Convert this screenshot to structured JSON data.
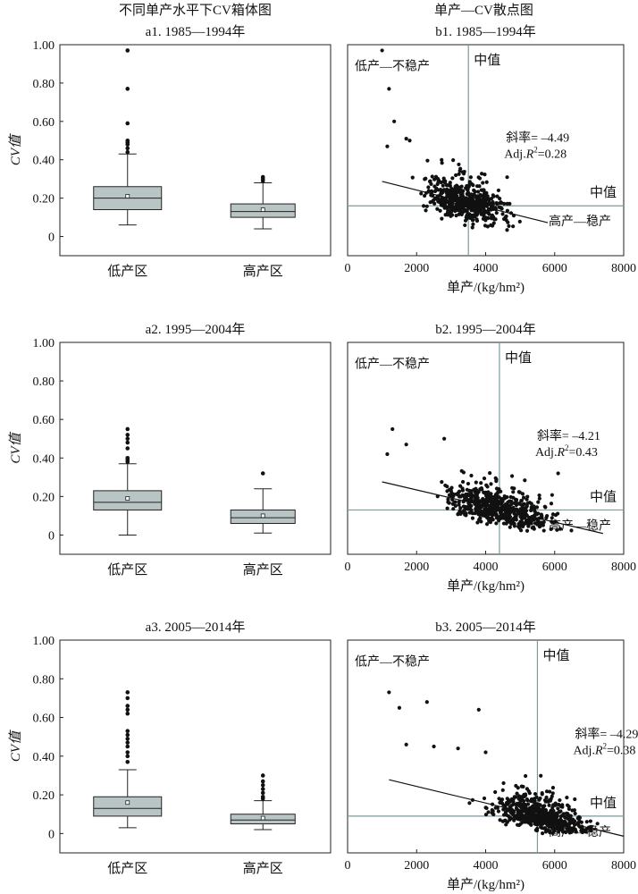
{
  "header": {
    "left_title": "不同单产水平下CV箱体图",
    "right_title": "单产—CV散点图"
  },
  "chart_data": [
    {
      "id": "a1",
      "type": "box",
      "title": "a1. 1985—1994年",
      "ylabel": "CV值",
      "ylim": [
        -0.1,
        1.0
      ],
      "yticks": [
        0,
        0.2,
        0.4,
        0.6,
        0.8,
        1.0
      ],
      "ytick_labels": [
        "0",
        "0.20",
        "0.40",
        "0.60",
        "0.80",
        "1.00"
      ],
      "categories": [
        "低产区",
        "高产区"
      ],
      "boxes": [
        {
          "name": "低产区",
          "whisker_low": 0.06,
          "q1": 0.14,
          "median": 0.2,
          "q3": 0.26,
          "whisker_high": 0.43,
          "mean": 0.21,
          "outliers": [
            0.44,
            0.46,
            0.48,
            0.49,
            0.5,
            0.59,
            0.77,
            0.97
          ]
        },
        {
          "name": "高产区",
          "whisker_low": 0.04,
          "q1": 0.1,
          "median": 0.13,
          "q3": 0.17,
          "whisker_high": 0.28,
          "mean": 0.14,
          "outliers": [
            0.29,
            0.3,
            0.31
          ]
        }
      ],
      "box_color": "#b9c4c4"
    },
    {
      "id": "b1",
      "type": "scatter",
      "title": "b1. 1985—1994年",
      "xlabel": "单产/(kg/hm²)",
      "xlim": [
        0,
        8000
      ],
      "ylim": [
        -0.1,
        1.0
      ],
      "xticks": [
        0,
        2000,
        4000,
        6000,
        8000
      ],
      "median_x": 3500,
      "median_y": 0.16,
      "labels": {
        "low": "低产—不稳产",
        "high": "高产—稳产",
        "median": "中值"
      },
      "annotation": {
        "slope": "斜率= –4.49",
        "r2_prefix": "Adj.",
        "r2_var": "R",
        "r2_sup": "2",
        "r2_value": "=0.28"
      },
      "cloud": {
        "x_min": 1000,
        "x_max": 5900,
        "n": 520,
        "slope_per_1000": -0.0449,
        "intercept": 0.332,
        "x_center": 3400,
        "spread": 1050,
        "noise": 0.065,
        "y_floor": 0.03,
        "seed": 11
      },
      "line": [
        [
          1000,
          0.287
        ],
        [
          5800,
          0.072
        ]
      ],
      "extra_points": [
        [
          1000,
          0.97
        ],
        [
          1200,
          0.77
        ],
        [
          1350,
          0.6
        ],
        [
          1700,
          0.51
        ],
        [
          1800,
          0.5
        ],
        [
          1150,
          0.47
        ]
      ]
    },
    {
      "id": "a2",
      "type": "box",
      "title": "a2. 1995—2004年",
      "ylabel": "CV值",
      "ylim": [
        -0.1,
        1.0
      ],
      "yticks": [
        0,
        0.2,
        0.4,
        0.6,
        0.8,
        1.0
      ],
      "ytick_labels": [
        "0",
        "0.20",
        "0.40",
        "0.60",
        "0.80",
        "1.00"
      ],
      "categories": [
        "低产区",
        "高产区"
      ],
      "boxes": [
        {
          "name": "低产区",
          "whisker_low": 0.0,
          "q1": 0.13,
          "median": 0.17,
          "q3": 0.23,
          "whisker_high": 0.37,
          "mean": 0.19,
          "outliers": [
            0.38,
            0.39,
            0.4,
            0.45,
            0.48,
            0.5,
            0.52,
            0.55
          ]
        },
        {
          "name": "高产区",
          "whisker_low": 0.01,
          "q1": 0.06,
          "median": 0.09,
          "q3": 0.13,
          "whisker_high": 0.24,
          "mean": 0.1,
          "outliers": [
            0.32
          ]
        }
      ],
      "box_color": "#b9c4c4"
    },
    {
      "id": "b2",
      "type": "scatter",
      "title": "b2. 1995—2004年",
      "xlabel": "单产/(kg/hm²)",
      "xlim": [
        0,
        8000
      ],
      "ylim": [
        -0.1,
        1.0
      ],
      "xticks": [
        0,
        2000,
        4000,
        6000,
        8000
      ],
      "median_x": 4400,
      "median_y": 0.13,
      "labels": {
        "low": "低产—不稳产",
        "high": "高产—稳产",
        "median": "中值"
      },
      "annotation": {
        "slope": "斜率= –4.21",
        "r2_prefix": "Adj.",
        "r2_var": "R",
        "r2_sup": "2",
        "r2_value": "=0.43"
      },
      "cloud": {
        "x_min": 1100,
        "x_max": 7500,
        "n": 560,
        "slope_per_1000": -0.0421,
        "intercept": 0.318,
        "x_center": 4400,
        "spread": 1400,
        "noise": 0.06,
        "y_floor": 0.01,
        "seed": 23
      },
      "line": [
        [
          1000,
          0.276
        ],
        [
          7400,
          0.008
        ]
      ],
      "extra_points": [
        [
          1300,
          0.55
        ],
        [
          1700,
          0.47
        ],
        [
          2800,
          0.5
        ],
        [
          6100,
          0.32
        ],
        [
          1150,
          0.42
        ]
      ]
    },
    {
      "id": "a3",
      "type": "box",
      "title": "a3. 2005—2014年",
      "ylabel": "CV值",
      "ylim": [
        -0.1,
        1.0
      ],
      "yticks": [
        0,
        0.2,
        0.4,
        0.6,
        0.8,
        1.0
      ],
      "ytick_labels": [
        "0",
        "0.20",
        "0.40",
        "0.60",
        "0.80",
        "1.00"
      ],
      "categories": [
        "低产区",
        "高产区"
      ],
      "boxes": [
        {
          "name": "低产区",
          "whisker_low": 0.03,
          "q1": 0.09,
          "median": 0.13,
          "q3": 0.19,
          "whisker_high": 0.33,
          "mean": 0.16,
          "outliers": [
            0.37,
            0.4,
            0.42,
            0.45,
            0.47,
            0.49,
            0.51,
            0.53,
            0.62,
            0.64,
            0.66,
            0.7,
            0.73
          ]
        },
        {
          "name": "高产区",
          "whisker_low": 0.02,
          "q1": 0.05,
          "median": 0.07,
          "q3": 0.1,
          "whisker_high": 0.17,
          "mean": 0.08,
          "outliers": [
            0.18,
            0.19,
            0.21,
            0.23,
            0.25,
            0.27,
            0.3
          ]
        }
      ],
      "box_color": "#b9c4c4"
    },
    {
      "id": "b3",
      "type": "scatter",
      "title": "b3. 2005—2014年",
      "xlabel": "单产/(kg/hm²)",
      "xlim": [
        0,
        8000
      ],
      "ylim": [
        -0.1,
        1.0
      ],
      "xticks": [
        0,
        2000,
        4000,
        6000,
        8000
      ],
      "median_x": 5500,
      "median_y": 0.09,
      "labels": {
        "low": "低产—不稳产",
        "high": "高产—稳产",
        "median": "中值"
      },
      "annotation": {
        "slope": "斜率= –4.29",
        "r2_prefix": "Adj.",
        "r2_var": "R",
        "r2_sup": "2",
        "r2_value": "=0.38"
      },
      "cloud": {
        "x_min": 1700,
        "x_max": 7900,
        "n": 560,
        "slope_per_1000": -0.0429,
        "intercept": 0.33,
        "x_center": 5600,
        "spread": 1300,
        "noise": 0.055,
        "y_floor": 0.0,
        "seed": 37
      },
      "line": [
        [
          1200,
          0.278
        ],
        [
          8000,
          -0.014
        ]
      ],
      "extra_points": [
        [
          1200,
          0.73
        ],
        [
          1500,
          0.65
        ],
        [
          1700,
          0.46
        ],
        [
          2300,
          0.68
        ],
        [
          3800,
          0.64
        ],
        [
          2500,
          0.45
        ],
        [
          3200,
          0.44
        ],
        [
          4000,
          0.42
        ]
      ]
    }
  ]
}
